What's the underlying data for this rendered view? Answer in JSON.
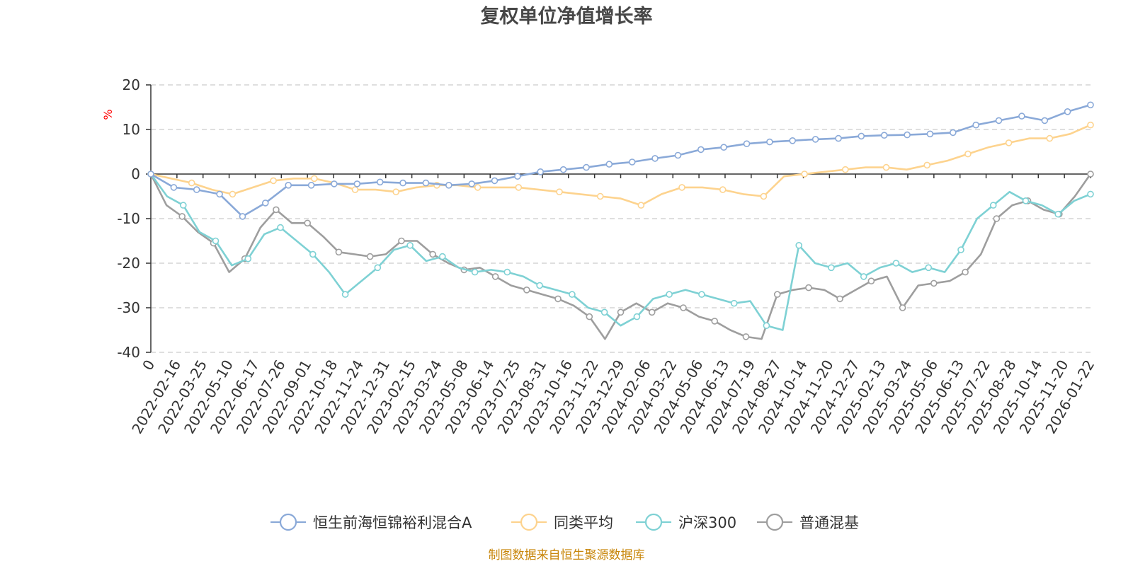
{
  "chart_data": {
    "type": "line",
    "title": "复权单位净值增长率",
    "ylabel": "%",
    "ylim": [
      -40,
      20
    ],
    "yticks": [
      20,
      10,
      0,
      -10,
      -20,
      -30,
      -40
    ],
    "x_tick_labels": [
      "0",
      "2022-02-16",
      "2022-03-25",
      "2022-05-10",
      "2022-06-17",
      "2022-07-26",
      "2022-09-01",
      "2022-10-18",
      "2022-11-24",
      "2022-12-31",
      "2023-02-15",
      "2023-03-24",
      "2023-05-08",
      "2023-06-14",
      "2023-07-25",
      "2023-08-31",
      "2023-10-16",
      "2023-11-22",
      "2023-12-29",
      "2024-02-06",
      "2024-03-22",
      "2024-05-06",
      "2024-06-13",
      "2024-07-19",
      "2024-08-27",
      "2024-10-14",
      "2024-11-20",
      "2024-12-27",
      "2025-02-13",
      "2025-03-24",
      "2025-05-06",
      "2025-06-13",
      "2025-07-22",
      "2025-08-28",
      "2025-10-14",
      "2025-11-20",
      "2026-01-22"
    ],
    "grid": true,
    "legend_position": "bottom",
    "series": [
      {
        "name": "恒生前海恒锦裕利混合A",
        "color": "#8aa9d8",
        "values": [
          0,
          -3,
          -3.5,
          -4.5,
          -9.5,
          -6.5,
          -2.5,
          -2.5,
          -2.2,
          -2.2,
          -1.8,
          -2,
          -2,
          -2.5,
          -2.2,
          -1.5,
          -0.5,
          0.5,
          1,
          1.5,
          2.2,
          2.7,
          3.5,
          4.2,
          5.5,
          6,
          6.8,
          7.2,
          7.5,
          7.8,
          8,
          8.5,
          8.7,
          8.8,
          9,
          9.3,
          11,
          12,
          13,
          12,
          14,
          15.5
        ]
      },
      {
        "name": "同类平均",
        "color": "#fdd38e",
        "values": [
          0,
          -1,
          -2,
          -3.5,
          -4.5,
          -3,
          -1.5,
          -1,
          -1,
          -2,
          -3.5,
          -3.5,
          -4,
          -3,
          -2.5,
          -2.5,
          -3,
          -3,
          -3,
          -3.5,
          -4,
          -4.5,
          -5,
          -5.5,
          -7,
          -4.5,
          -3,
          -3,
          -3.5,
          -4.5,
          -5,
          -0.5,
          0,
          0.5,
          1,
          1.5,
          1.5,
          1,
          2,
          3,
          4.5,
          6,
          7,
          8,
          8,
          9,
          11
        ]
      },
      {
        "name": "沪深300",
        "color": "#7ed1d4",
        "values": [
          0,
          -5,
          -7,
          -13,
          -15,
          -20.5,
          -19,
          -13.5,
          -12,
          -15,
          -18,
          -22,
          -27,
          -24,
          -21,
          -17,
          -16,
          -19.5,
          -18.5,
          -21,
          -22,
          -21.5,
          -22,
          -23,
          -25,
          -26,
          -27,
          -30,
          -31,
          -34,
          -32,
          -28,
          -27,
          -26,
          -27,
          -28,
          -29,
          -28.5,
          -34,
          -35,
          -16,
          -20,
          -21,
          -20,
          -23,
          -21,
          -20,
          -22,
          -21,
          -22,
          -17,
          -10,
          -7,
          -4,
          -6,
          -7,
          -9,
          -6,
          -4.5
        ]
      },
      {
        "name": "普通混基",
        "color": "#9e9e9e",
        "values": [
          0,
          -7,
          -9.5,
          -13,
          -15.5,
          -22,
          -19,
          -12,
          -8,
          -11,
          -11,
          -14,
          -17.5,
          -18,
          -18.5,
          -18,
          -15,
          -15,
          -18,
          -20,
          -21.5,
          -21,
          -23,
          -25,
          -26,
          -27,
          -28,
          -29.5,
          -32,
          -37,
          -31,
          -29,
          -31,
          -29,
          -30,
          -32,
          -33,
          -35,
          -36.5,
          -37,
          -27,
          -26,
          -25.5,
          -26,
          -28,
          -26,
          -24,
          -23,
          -30,
          -25,
          -24.5,
          -24,
          -22,
          -18,
          -10,
          -7,
          -6,
          -8,
          -9,
          -5,
          0
        ]
      }
    ],
    "source_note": "制图数据来自恒生聚源数据库"
  }
}
